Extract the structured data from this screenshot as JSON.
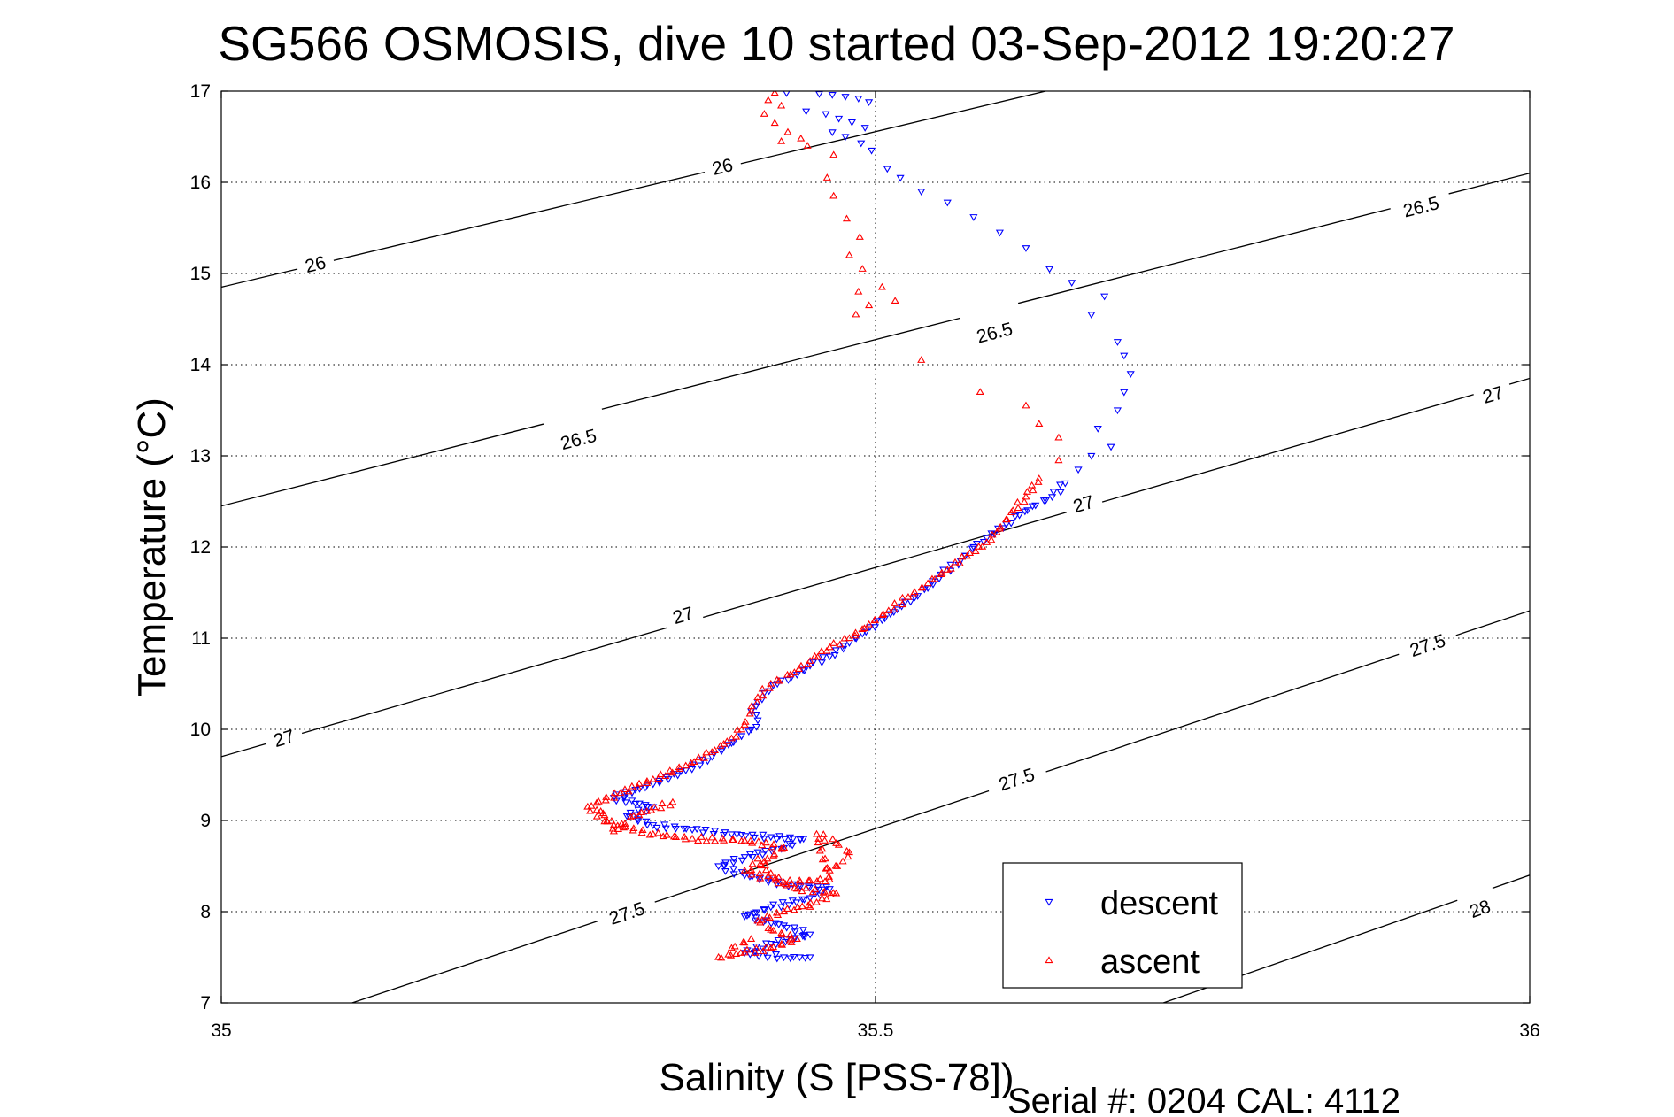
{
  "title": "SG566 OSMOSIS, dive 10 started 03-Sep-2012 19:20:27",
  "footer": "Serial #: 0204  CAL: 4112",
  "colors": {
    "descent": "#0000ff",
    "ascent": "#ff0000",
    "contour": "#000000",
    "grid": "#000000"
  },
  "chart_data": {
    "type": "scatter",
    "xlabel": "Salinity (S [PSS-78])",
    "ylabel": "Temperature (°C)",
    "xlim": [
      35,
      36
    ],
    "ylim": [
      7,
      17
    ],
    "x_ticks": [
      35,
      35.5,
      36
    ],
    "x_tick_labels": [
      "35",
      "35.5",
      "36"
    ],
    "y_ticks": [
      7,
      8,
      9,
      10,
      11,
      12,
      13,
      14,
      15,
      16,
      17
    ],
    "y_tick_labels": [
      "7",
      "8",
      "9",
      "10",
      "11",
      "12",
      "13",
      "14",
      "15",
      "16",
      "17"
    ],
    "grid": "dotted, at ticks",
    "legend": {
      "placement": "bottom-right",
      "entries": [
        "descent",
        "ascent"
      ]
    },
    "contours": [
      {
        "level": "26",
        "points": [
          [
            35,
            14.85
          ],
          [
            35.63,
            17.0
          ]
        ],
        "labels": [
          {
            "text": "26",
            "at": [
              35.072,
              15.1
            ]
          },
          {
            "text": "26",
            "at": [
              35.383,
              16.17
            ]
          }
        ]
      },
      {
        "level": "26.5",
        "points": [
          [
            35,
            12.45
          ],
          [
            36,
            16.1
          ]
        ],
        "labels": [
          {
            "text": "26.5",
            "at": [
              35.273,
              13.18
            ]
          },
          {
            "text": "26.5",
            "at": [
              35.591,
              14.35
            ]
          },
          {
            "text": "26.5",
            "at": [
              35.917,
              15.73
            ]
          }
        ]
      },
      {
        "level": "27",
        "points": [
          [
            35,
            9.7
          ],
          [
            36,
            13.85
          ]
        ],
        "labels": [
          {
            "text": "27",
            "at": [
              35.048,
              9.9
            ]
          },
          {
            "text": "27",
            "at": [
              35.353,
              11.25
            ]
          },
          {
            "text": "27",
            "at": [
              35.659,
              12.47
            ]
          },
          {
            "text": "27",
            "at": [
              35.972,
              13.67
            ]
          }
        ]
      },
      {
        "level": "27.5",
        "points": [
          [
            35.1,
            7.0
          ],
          [
            36,
            11.3
          ]
        ],
        "labels": [
          {
            "text": "27.5",
            "at": [
              35.31,
              7.98
            ]
          },
          {
            "text": "27.5",
            "at": [
              35.608,
              9.45
            ]
          },
          {
            "text": "27.5",
            "at": [
              35.922,
              10.92
            ]
          }
        ]
      },
      {
        "level": "28",
        "points": [
          [
            35.72,
            7.0
          ],
          [
            36,
            8.4
          ]
        ],
        "labels": [
          {
            "text": "28",
            "at": [
              35.962,
              8.03
            ]
          }
        ]
      }
    ],
    "series": [
      {
        "name": "descent",
        "marker": "triangle-down",
        "points": [
          [
            35.432,
            16.98
          ],
          [
            35.457,
            16.97
          ],
          [
            35.467,
            16.96
          ],
          [
            35.477,
            16.94
          ],
          [
            35.487,
            16.92
          ],
          [
            35.495,
            16.88
          ],
          [
            35.447,
            16.78
          ],
          [
            35.462,
            16.75
          ],
          [
            35.472,
            16.7
          ],
          [
            35.482,
            16.66
          ],
          [
            35.492,
            16.6
          ],
          [
            35.467,
            16.55
          ],
          [
            35.477,
            16.5
          ],
          [
            35.489,
            16.43
          ],
          [
            35.497,
            16.35
          ],
          [
            35.509,
            16.15
          ],
          [
            35.519,
            16.05
          ],
          [
            35.535,
            15.9
          ],
          [
            35.555,
            15.78
          ],
          [
            35.575,
            15.62
          ],
          [
            35.595,
            15.45
          ],
          [
            35.615,
            15.28
          ],
          [
            35.633,
            15.05
          ],
          [
            35.65,
            14.9
          ],
          [
            35.675,
            14.75
          ],
          [
            35.665,
            14.55
          ],
          [
            35.685,
            14.25
          ],
          [
            35.69,
            14.1
          ],
          [
            35.695,
            13.9
          ],
          [
            35.69,
            13.7
          ],
          [
            35.685,
            13.5
          ],
          [
            35.67,
            13.3
          ],
          [
            35.68,
            13.1
          ],
          [
            35.665,
            13.0
          ],
          [
            35.655,
            12.85
          ],
          [
            35.645,
            12.7
          ],
          [
            35.635,
            12.55
          ],
          [
            35.62,
            12.45
          ],
          [
            35.61,
            12.35
          ],
          [
            35.6,
            12.25
          ],
          [
            35.585,
            12.1
          ],
          [
            35.575,
            12.0
          ],
          [
            35.565,
            11.85
          ],
          [
            35.55,
            11.7
          ],
          [
            35.54,
            11.55
          ],
          [
            35.53,
            11.45
          ],
          [
            35.52,
            11.35
          ],
          [
            35.505,
            11.2
          ],
          [
            35.49,
            11.05
          ],
          [
            35.48,
            10.95
          ],
          [
            35.465,
            10.8
          ],
          [
            35.45,
            10.7
          ],
          [
            35.44,
            10.6
          ],
          [
            35.425,
            10.5
          ],
          [
            35.415,
            10.4
          ],
          [
            35.41,
            10.3
          ],
          [
            35.405,
            10.2
          ],
          [
            35.41,
            10.1
          ],
          [
            35.405,
            10.0
          ],
          [
            35.39,
            9.85
          ],
          [
            35.375,
            9.7
          ],
          [
            35.355,
            9.55
          ],
          [
            35.33,
            9.4
          ],
          [
            35.3,
            9.25
          ],
          [
            35.33,
            9.15
          ],
          [
            35.31,
            9.05
          ],
          [
            35.33,
            8.95
          ],
          [
            35.36,
            8.9
          ],
          [
            35.39,
            8.85
          ],
          [
            35.42,
            8.82
          ],
          [
            35.445,
            8.8
          ],
          [
            35.43,
            8.7
          ],
          [
            35.4,
            8.6
          ],
          [
            35.38,
            8.5
          ],
          [
            35.4,
            8.4
          ],
          [
            35.43,
            8.3
          ],
          [
            35.465,
            8.25
          ],
          [
            35.45,
            8.15
          ],
          [
            35.42,
            8.05
          ],
          [
            35.4,
            7.95
          ],
          [
            35.43,
            7.85
          ],
          [
            35.45,
            7.75
          ],
          [
            35.42,
            7.65
          ],
          [
            35.4,
            7.55
          ],
          [
            35.43,
            7.5
          ],
          [
            35.45,
            7.5
          ]
        ]
      },
      {
        "name": "ascent",
        "marker": "triangle-up",
        "points": [
          [
            35.423,
            16.98
          ],
          [
            35.418,
            16.9
          ],
          [
            35.428,
            16.84
          ],
          [
            35.415,
            16.75
          ],
          [
            35.423,
            16.65
          ],
          [
            35.433,
            16.55
          ],
          [
            35.443,
            16.48
          ],
          [
            35.428,
            16.45
          ],
          [
            35.448,
            16.4
          ],
          [
            35.468,
            16.3
          ],
          [
            35.463,
            16.05
          ],
          [
            35.468,
            15.85
          ],
          [
            35.478,
            15.6
          ],
          [
            35.488,
            15.4
          ],
          [
            35.48,
            15.2
          ],
          [
            35.49,
            15.05
          ],
          [
            35.487,
            14.8
          ],
          [
            35.495,
            14.65
          ],
          [
            35.485,
            14.55
          ],
          [
            35.505,
            14.85
          ],
          [
            35.515,
            14.7
          ],
          [
            35.535,
            14.05
          ],
          [
            35.58,
            13.7
          ],
          [
            35.615,
            13.55
          ],
          [
            35.625,
            13.35
          ],
          [
            35.64,
            13.2
          ],
          [
            35.64,
            12.95
          ],
          [
            35.625,
            12.75
          ],
          [
            35.615,
            12.55
          ],
          [
            35.605,
            12.4
          ],
          [
            35.595,
            12.2
          ],
          [
            35.585,
            12.05
          ],
          [
            35.57,
            11.9
          ],
          [
            35.555,
            11.75
          ],
          [
            35.54,
            11.6
          ],
          [
            35.525,
            11.45
          ],
          [
            35.51,
            11.3
          ],
          [
            35.495,
            11.15
          ],
          [
            35.48,
            11.0
          ],
          [
            35.465,
            10.9
          ],
          [
            35.45,
            10.75
          ],
          [
            35.435,
            10.6
          ],
          [
            35.42,
            10.5
          ],
          [
            35.41,
            10.35
          ],
          [
            35.405,
            10.2
          ],
          [
            35.4,
            10.05
          ],
          [
            35.39,
            9.9
          ],
          [
            35.375,
            9.75
          ],
          [
            35.355,
            9.6
          ],
          [
            35.33,
            9.45
          ],
          [
            35.305,
            9.3
          ],
          [
            35.28,
            9.15
          ],
          [
            35.3,
            8.95
          ],
          [
            35.33,
            8.85
          ],
          [
            35.36,
            8.8
          ],
          [
            35.4,
            8.78
          ],
          [
            35.43,
            8.7
          ],
          [
            35.415,
            8.55
          ],
          [
            35.4,
            8.45
          ],
          [
            35.42,
            8.35
          ],
          [
            35.44,
            8.25
          ],
          [
            35.47,
            8.2
          ],
          [
            35.455,
            8.1
          ],
          [
            35.43,
            8.0
          ],
          [
            35.41,
            7.9
          ],
          [
            35.42,
            7.8
          ],
          [
            35.44,
            7.7
          ],
          [
            35.42,
            7.6
          ],
          [
            35.4,
            7.55
          ],
          [
            35.38,
            7.5
          ],
          [
            35.465,
            8.45
          ],
          [
            35.475,
            8.55
          ],
          [
            35.48,
            8.65
          ],
          [
            35.47,
            8.75
          ],
          [
            35.455,
            8.85
          ],
          [
            35.465,
            8.35
          ],
          [
            35.43,
            8.32
          ],
          [
            35.42,
            8.42
          ],
          [
            35.41,
            8.58
          ],
          [
            35.45,
            8.05
          ],
          [
            35.39,
            7.6
          ],
          [
            35.405,
            7.7
          ],
          [
            35.29,
            9.1
          ],
          [
            35.3,
            8.88
          ],
          [
            35.315,
            9.05
          ],
          [
            35.345,
            9.2
          ]
        ]
      }
    ]
  }
}
